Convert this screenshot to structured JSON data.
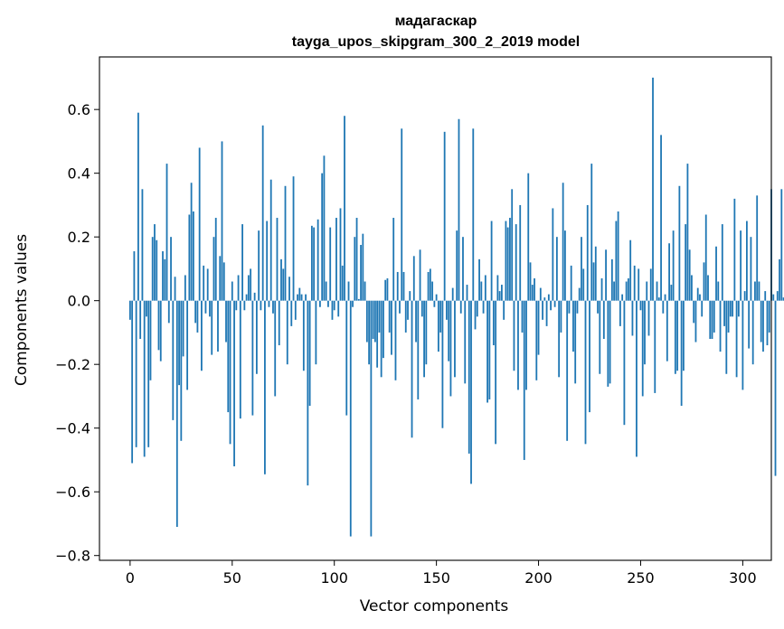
{
  "chart_data": {
    "type": "bar",
    "title": "мадагаскар",
    "subtitle": "tayga_upos_skipgram_300_2_2019 model",
    "xlabel": "Vector components",
    "ylabel": "Components values",
    "xlim": [
      -15,
      314
    ],
    "ylim": [
      -0.815,
      0.765
    ],
    "x_ticks": [
      0,
      50,
      100,
      150,
      200,
      250,
      300
    ],
    "y_ticks": [
      -0.8,
      -0.6,
      -0.4,
      -0.2,
      0.0,
      0.2,
      0.4,
      0.6
    ],
    "x_tick_labels": [
      "0",
      "50",
      "100",
      "150",
      "200",
      "250",
      "300"
    ],
    "y_tick_labels": [
      "−0.8",
      "−0.6",
      "−0.4",
      "−0.2",
      "0.0",
      "0.2",
      "0.4",
      "0.6"
    ],
    "grid": false,
    "bar_color": "#1f77b4",
    "values": [
      -0.06,
      -0.51,
      0.155,
      -0.46,
      0.59,
      -0.12,
      0.35,
      -0.49,
      -0.05,
      -0.46,
      -0.25,
      0.2,
      0.24,
      0.19,
      -0.155,
      -0.19,
      0.155,
      0.13,
      0.43,
      -0.07,
      0.2,
      -0.375,
      0.075,
      -0.71,
      -0.265,
      -0.44,
      -0.175,
      0.08,
      -0.28,
      0.27,
      0.37,
      0.28,
      -0.07,
      -0.1,
      0.48,
      -0.22,
      0.11,
      -0.04,
      0.1,
      -0.05,
      -0.17,
      0.2,
      0.26,
      -0.16,
      0.14,
      0.5,
      0.12,
      -0.13,
      -0.35,
      -0.45,
      0.06,
      -0.52,
      -0.03,
      0.08,
      -0.37,
      0.24,
      -0.03,
      0.02,
      0.08,
      0.1,
      -0.36,
      0.025,
      -0.23,
      0.22,
      -0.03,
      0.55,
      -0.545,
      0.25,
      -0.02,
      0.38,
      -0.04,
      -0.3,
      0.26,
      -0.14,
      0.13,
      0.1,
      0.36,
      -0.2,
      0.075,
      -0.08,
      0.39,
      -0.06,
      0.02,
      0.04,
      0.02,
      -0.22,
      0.02,
      -0.58,
      -0.33,
      0.235,
      0.23,
      -0.2,
      0.255,
      -0.02,
      0.4,
      0.455,
      0.06,
      -0.02,
      0.23,
      -0.06,
      -0.03,
      0.26,
      -0.05,
      0.29,
      0.11,
      0.58,
      -0.36,
      0.06,
      -0.74,
      -0.02,
      0.2,
      0.26,
      0.005,
      0.175,
      0.21,
      0.06,
      -0.13,
      -0.2,
      -0.74,
      -0.12,
      -0.13,
      -0.21,
      -0.1,
      -0.24,
      -0.18,
      0.065,
      0.07,
      -0.1,
      -0.17,
      0.26,
      -0.25,
      0.09,
      -0.04,
      0.54,
      0.09,
      -0.1,
      -0.06,
      0.03,
      -0.43,
      0.14,
      -0.13,
      -0.31,
      0.16,
      -0.05,
      -0.24,
      -0.2,
      0.09,
      0.1,
      0.06,
      -0.02,
      0.02,
      -0.16,
      -0.1,
      -0.4,
      0.53,
      -0.06,
      -0.19,
      -0.3,
      0.04,
      -0.24,
      0.22,
      0.57,
      -0.04,
      0.2,
      -0.26,
      0.05,
      -0.48,
      -0.575,
      0.54,
      -0.09,
      -0.05,
      0.13,
      0.06,
      -0.04,
      0.08,
      -0.32,
      -0.31,
      0.25,
      -0.14,
      -0.45,
      0.08,
      0.03,
      0.05,
      -0.06,
      0.25,
      0.23,
      0.26,
      0.35,
      -0.22,
      0.24,
      -0.28,
      0.3,
      -0.1,
      -0.5,
      -0.28,
      0.4,
      0.12,
      0.05,
      0.07,
      -0.25,
      -0.17,
      0.04,
      -0.06,
      0.01,
      -0.08,
      0.02,
      -0.03,
      0.29,
      -0.02,
      0.2,
      -0.24,
      -0.1,
      0.37,
      0.22,
      -0.44,
      -0.04,
      0.11,
      -0.16,
      -0.26,
      -0.04,
      0.04,
      0.2,
      0.1,
      -0.45,
      0.3,
      -0.35,
      0.43,
      0.12,
      0.17,
      -0.04,
      -0.23,
      0.07,
      -0.12,
      0.16,
      -0.27,
      -0.26,
      0.13,
      0.06,
      0.25,
      0.28,
      -0.08,
      0.02,
      -0.39,
      0.06,
      0.07,
      0.19,
      -0.11,
      0.11,
      -0.49,
      0.1,
      -0.03,
      -0.3,
      -0.2,
      0.06,
      -0.11,
      0.1,
      0.7,
      -0.29,
      0.06,
      0.01,
      0.52,
      -0.04,
      0.02,
      -0.19,
      0.18,
      0.05,
      0.22,
      -0.23,
      -0.22,
      0.36,
      -0.33,
      -0.22,
      0.24,
      0.43,
      0.16,
      0.08,
      -0.07,
      -0.13,
      0.04,
      0.02,
      -0.05,
      0.12,
      0.27,
      0.08,
      -0.12,
      -0.12,
      -0.1,
      0.17,
      0.06,
      -0.16,
      0.24,
      -0.08,
      -0.23,
      -0.1,
      -0.05,
      -0.05,
      0.32,
      -0.24,
      -0.05,
      0.22,
      -0.28,
      0.03,
      0.25,
      -0.15,
      0.2,
      -0.2,
      0.06,
      0.33,
      0.06,
      -0.13,
      -0.16,
      0.03,
      -0.14,
      -0.1,
      0.35,
      0.02,
      -0.55,
      0.03,
      0.13,
      0.35,
      0.01
    ]
  }
}
